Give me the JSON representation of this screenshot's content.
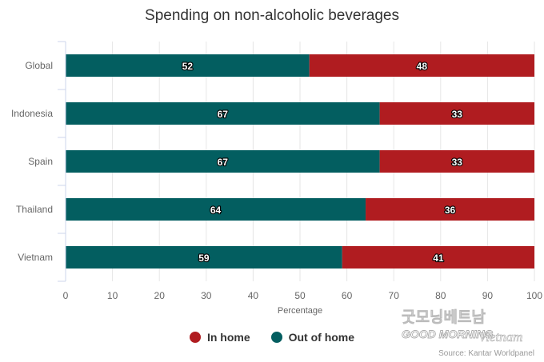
{
  "colors": {
    "in_home": "#b01c20",
    "out_of_home": "#035e60"
  },
  "chart_data": {
    "type": "bar",
    "orientation": "horizontal",
    "stacked": true,
    "title": "Spending on non-alcoholic beverages",
    "xlabel": "Percentage",
    "ylabel": "",
    "xlim": [
      0,
      100
    ],
    "x_ticks": [
      0,
      10,
      20,
      30,
      40,
      50,
      60,
      70,
      80,
      90,
      100
    ],
    "grid": "vertical",
    "legend_position": "bottom-center",
    "categories": [
      "Global",
      "Indonesia",
      "Spain",
      "Thailand",
      "Vietnam"
    ],
    "series": [
      {
        "name": "Out of home",
        "values": [
          52,
          67,
          67,
          64,
          59
        ]
      },
      {
        "name": "In home",
        "values": [
          48,
          33,
          33,
          36,
          41
        ]
      }
    ]
  },
  "legend": {
    "items": [
      "In home",
      "Out of home"
    ]
  },
  "watermark": {
    "line1": "굿모닝베트남",
    "line2": "GOOD MORNING",
    "line3": "Vietnam"
  },
  "source": "Source: Kantar Worldpanel"
}
